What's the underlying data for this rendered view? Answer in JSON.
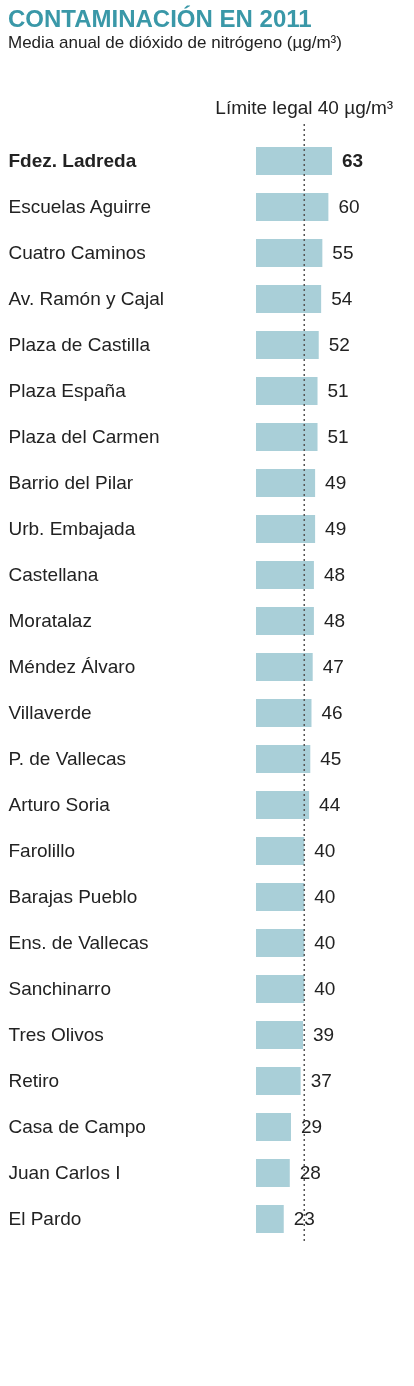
{
  "chart_data": {
    "type": "bar",
    "orientation": "horizontal",
    "title": "CONTAMINACIÓN EN 2011",
    "subtitle": "Media anual de dióxido de nitrógeno (µg/m³)",
    "categories": [
      "Fdez. Ladreda",
      "Escuelas Aguirre",
      "Cuatro Caminos",
      "Av. Ramón y Cajal",
      "Plaza de Castilla",
      "Plaza España",
      "Plaza del Carmen",
      "Barrio del Pilar",
      "Urb. Embajada",
      "Castellana",
      "Moratalaz",
      "Méndez Álvaro",
      "Villaverde",
      "P. de Vallecas",
      "Arturo Soria",
      "Farolillo",
      "Barajas Pueblo",
      "Ens. de Vallecas",
      "Sanchinarro",
      "Tres Olivos",
      "Retiro",
      "Casa de Campo",
      "Juan Carlos I",
      "El Pardo"
    ],
    "values": [
      63,
      60,
      55,
      54,
      52,
      51,
      51,
      49,
      49,
      48,
      48,
      47,
      46,
      45,
      44,
      40,
      40,
      40,
      40,
      39,
      37,
      29,
      28,
      23
    ],
    "color": "#a9cfd8",
    "data_labels": true,
    "ref_lines": [
      {
        "axis": "x",
        "value": 40,
        "label": "Límite legal 40 µg/m³",
        "color": "#555555",
        "line_style": "dotted"
      }
    ]
  }
}
